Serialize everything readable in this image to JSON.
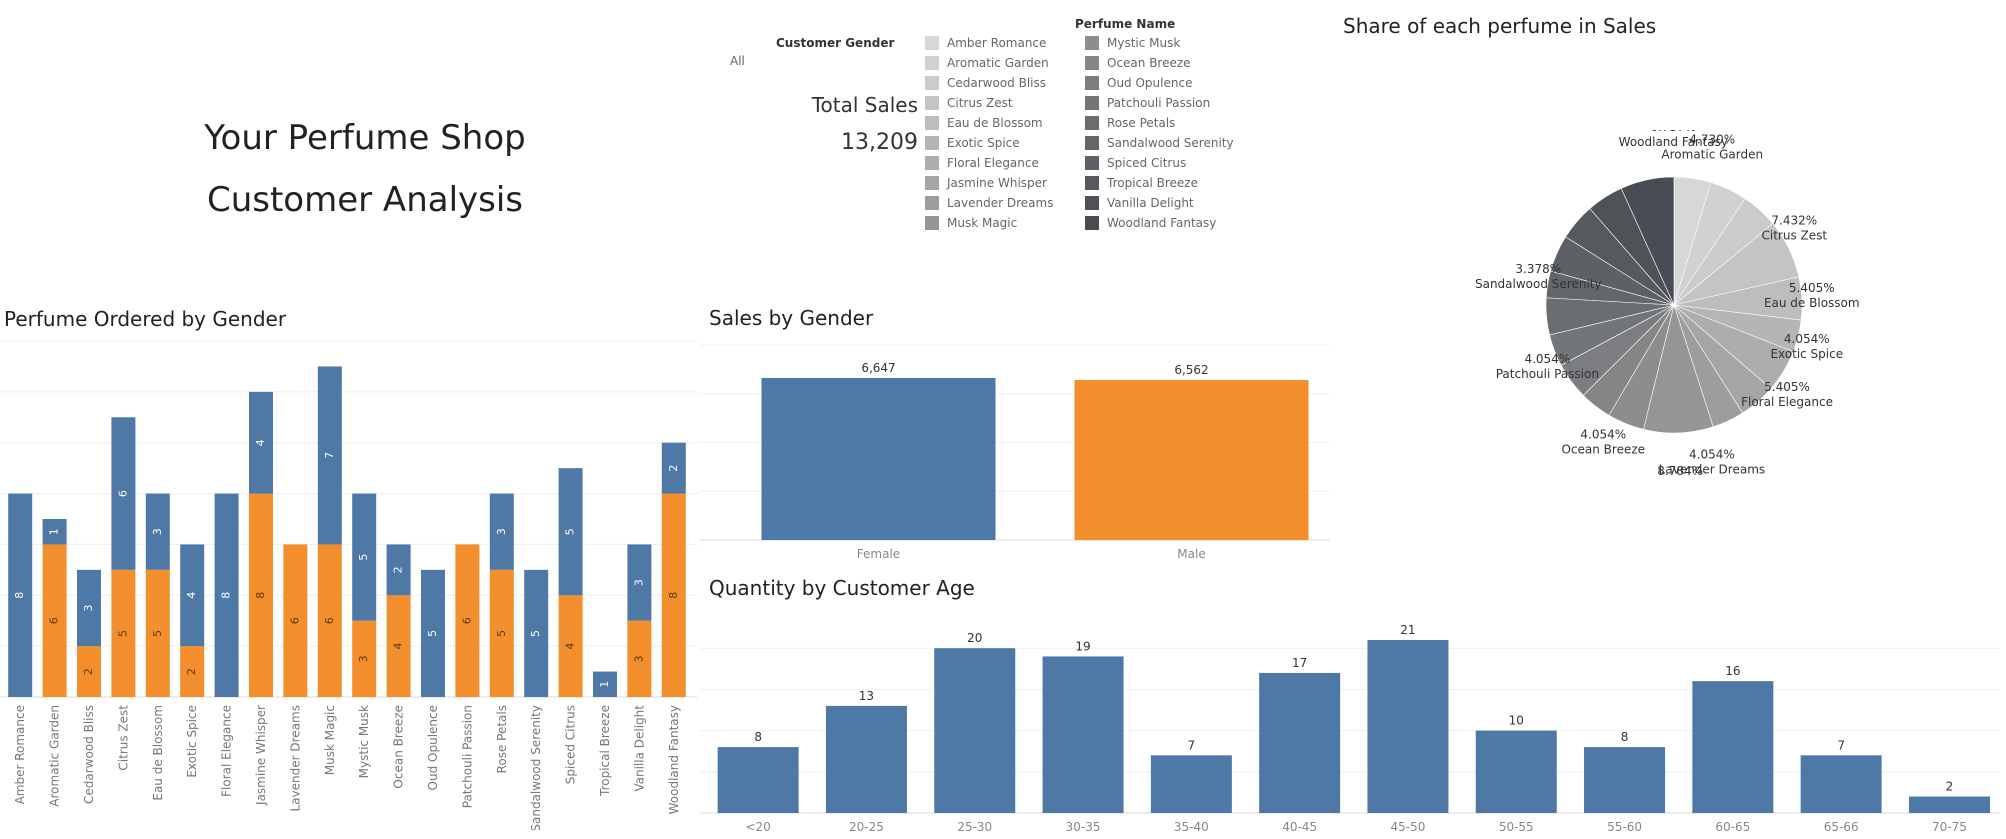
{
  "dashboard": {
    "title_line1": "Your Perfume Shop",
    "title_line2": "Customer Analysis"
  },
  "filter": {
    "label": "Customer Gender",
    "value": "All"
  },
  "kpi": {
    "label": "Total Sales",
    "value": "13,209"
  },
  "legend": {
    "title": "Perfume Name",
    "items": [
      {
        "name": "Amber Romance",
        "color": "#d7d7d7"
      },
      {
        "name": "Aromatic Garden",
        "color": "#d1d1d1"
      },
      {
        "name": "Cedarwood Bliss",
        "color": "#cbcbcb"
      },
      {
        "name": "Citrus Zest",
        "color": "#c4c4c4"
      },
      {
        "name": "Eau de Blossom",
        "color": "#bdbdbd"
      },
      {
        "name": "Exotic Spice",
        "color": "#b5b5b5"
      },
      {
        "name": "Floral Elegance",
        "color": "#adadad"
      },
      {
        "name": "Jasmine Whisper",
        "color": "#a5a5a5"
      },
      {
        "name": "Lavender Dreams",
        "color": "#9d9d9d"
      },
      {
        "name": "Musk Magic",
        "color": "#959595"
      },
      {
        "name": "Mystic Musk",
        "color": "#8b8d8f"
      },
      {
        "name": "Ocean Breeze",
        "color": "#838587"
      },
      {
        "name": "Oud Opulence",
        "color": "#7b7d80"
      },
      {
        "name": "Patchouli Passion",
        "color": "#737679"
      },
      {
        "name": "Rose Petals",
        "color": "#6b6e71"
      },
      {
        "name": "Sandalwood Serenity",
        "color": "#64676a"
      },
      {
        "name": "Spiced Citrus",
        "color": "#5d6064"
      },
      {
        "name": "Tropical Breeze",
        "color": "#56595e"
      },
      {
        "name": "Vanilla Delight",
        "color": "#4f5358"
      },
      {
        "name": "Woodland Fantasy",
        "color": "#484c53"
      }
    ]
  },
  "sheets": {
    "pie_title": "Share of each perfume in Sales",
    "stack_title": "Perfume Ordered by Gender",
    "gender_title": "Sales by Gender",
    "age_title": "Quantity by Customer Age"
  },
  "colors": {
    "female": "#4e79a7",
    "male": "#f28e2b"
  },
  "chart_data": [
    {
      "type": "bar",
      "name": "Perfume Ordered by Gender",
      "stacked": true,
      "categories": [
        "Amber Romance",
        "Aromatic Garden",
        "Cedarwood Bliss",
        "Citrus Zest",
        "Eau de Blossom",
        "Exotic Spice",
        "Floral Elegance",
        "Jasmine Whisper",
        "Lavender Dreams",
        "Musk Magic",
        "Mystic Musk",
        "Ocean Breeze",
        "Oud Opulence",
        "Patchouli Passion",
        "Rose Petals",
        "Sandalwood Serenity",
        "Spiced Citrus",
        "Tropical Breeze",
        "Vanilla Delight",
        "Woodland Fantasy"
      ],
      "series": [
        {
          "color": "#f28e2b",
          "values": [
            0,
            6,
            2,
            5,
            5,
            2,
            0,
            8,
            6,
            6,
            3,
            4,
            0,
            6,
            5,
            0,
            4,
            0,
            3,
            8
          ]
        },
        {
          "color": "#4e79a7",
          "values": [
            8,
            1,
            3,
            6,
            3,
            4,
            8,
            4,
            0,
            7,
            5,
            2,
            5,
            0,
            3,
            5,
            5,
            1,
            3,
            2
          ]
        }
      ],
      "ylim": [
        0,
        14
      ]
    },
    {
      "type": "bar",
      "name": "Sales by Gender",
      "categories": [
        "Female",
        "Male"
      ],
      "values": [
        6647,
        6562
      ],
      "labels": [
        "6,647",
        "6,562"
      ],
      "ylim": [
        0,
        8000
      ]
    },
    {
      "type": "bar",
      "name": "Quantity by Customer Age",
      "categories": [
        "<20",
        "20-25",
        "25-30",
        "30-35",
        "35-40",
        "40-45",
        "45-50",
        "50-55",
        "55-60",
        "60-65",
        "65-66",
        "70-75"
      ],
      "values": [
        8,
        13,
        20,
        19,
        7,
        17,
        21,
        10,
        8,
        16,
        7,
        2
      ],
      "ylim": [
        0,
        25
      ]
    },
    {
      "type": "pie",
      "name": "Share of each perfume in Sales",
      "slices": [
        {
          "label": "Amber Romance",
          "value": null
        },
        {
          "label": "Aromatic Garden",
          "value": 4.73
        },
        {
          "label": "Cedarwood Bliss",
          "value": null
        },
        {
          "label": "Citrus Zest",
          "value": 7.432
        },
        {
          "label": "Eau de Blossom",
          "value": 5.405
        },
        {
          "label": "Exotic Spice",
          "value": 4.054
        },
        {
          "label": "Floral Elegance",
          "value": 5.405
        },
        {
          "label": "Jasmine Whisper",
          "value": null
        },
        {
          "label": "Lavender Dreams",
          "value": 4.054
        },
        {
          "label": "Musk Magic",
          "value": 8.784
        },
        {
          "label": "Mystic Musk",
          "value": null
        },
        {
          "label": "Ocean Breeze",
          "value": 4.054
        },
        {
          "label": "Oud Opulence",
          "value": null
        },
        {
          "label": "Patchouli Passion",
          "value": 4.054
        },
        {
          "label": "Rose Petals",
          "value": null
        },
        {
          "label": "Sandalwood Serenity",
          "value": 3.378
        },
        {
          "label": "Spiced Citrus",
          "value": null
        },
        {
          "label": "Tropical Breeze",
          "value": null
        },
        {
          "label": "Vanilla Delight",
          "value": null
        },
        {
          "label": "Woodland Fantasy",
          "value": 6.757
        }
      ]
    }
  ]
}
